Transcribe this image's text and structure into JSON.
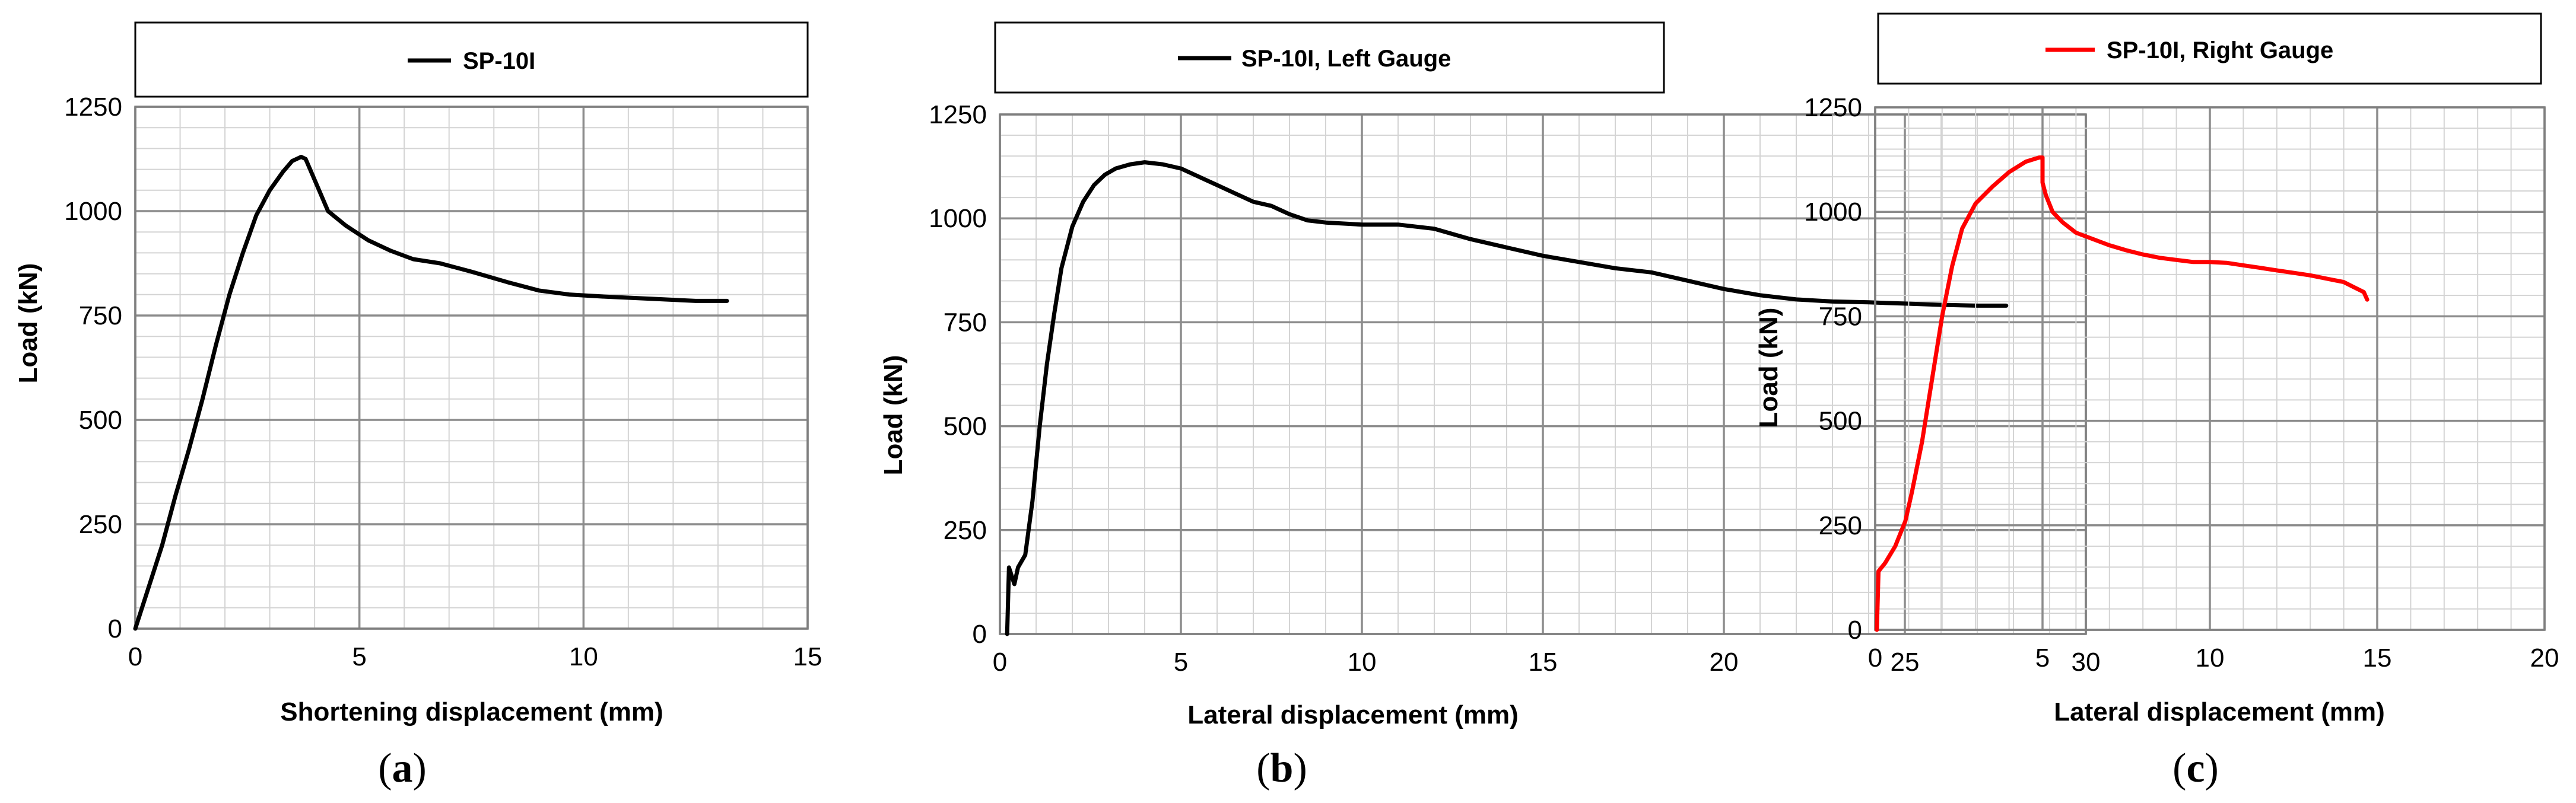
{
  "chart_data": [
    {
      "type": "line",
      "panel_label_open": "(",
      "panel_label_letter": "a",
      "panel_label_close": ")",
      "xlabel": "Shortening displacement (mm)",
      "ylabel": "Load (kN)",
      "xlim": [
        0,
        15
      ],
      "ylim": [
        0,
        1250
      ],
      "xticks": [
        0,
        5,
        10,
        15
      ],
      "yticks": [
        0,
        250,
        500,
        750,
        1000,
        1250
      ],
      "x_minor": 5,
      "y_minor": 5,
      "grid": true,
      "legend": "top",
      "series": [
        {
          "name": "SP-10I",
          "color": "#000000",
          "points": [
            [
              0,
              0
            ],
            [
              0.3,
              100
            ],
            [
              0.6,
              200
            ],
            [
              0.9,
              320
            ],
            [
              1.2,
              430
            ],
            [
              1.5,
              550
            ],
            [
              1.8,
              680
            ],
            [
              2.1,
              800
            ],
            [
              2.4,
              900
            ],
            [
              2.7,
              990
            ],
            [
              3.0,
              1050
            ],
            [
              3.3,
              1095
            ],
            [
              3.5,
              1120
            ],
            [
              3.7,
              1130
            ],
            [
              3.8,
              1125
            ],
            [
              3.9,
              1100
            ],
            [
              4.1,
              1050
            ],
            [
              4.3,
              1000
            ],
            [
              4.7,
              965
            ],
            [
              5.2,
              930
            ],
            [
              5.7,
              905
            ],
            [
              6.2,
              885
            ],
            [
              6.8,
              875
            ],
            [
              7.5,
              855
            ],
            [
              8.3,
              830
            ],
            [
              9.0,
              810
            ],
            [
              9.7,
              800
            ],
            [
              10.5,
              795
            ],
            [
              11.5,
              790
            ],
            [
              12.5,
              785
            ],
            [
              13.2,
              785
            ]
          ]
        }
      ]
    },
    {
      "type": "line",
      "panel_label_open": "(",
      "panel_label_letter": "b",
      "panel_label_close": ")",
      "xlabel": "Lateral displacement (mm)",
      "ylabel": "Load (kN)",
      "xlim": [
        0,
        30
      ],
      "ylim": [
        0,
        1250
      ],
      "xticks": [
        0,
        5,
        10,
        15,
        20,
        25,
        30
      ],
      "yticks": [
        0,
        250,
        500,
        750,
        1000,
        1250
      ],
      "x_minor": 5,
      "y_minor": 5,
      "grid": true,
      "legend": "top",
      "series": [
        {
          "name": "SP-10I, Left Gauge",
          "color": "#000000",
          "points": [
            [
              0.2,
              0
            ],
            [
              0.25,
              160
            ],
            [
              0.4,
              120
            ],
            [
              0.5,
              160
            ],
            [
              0.7,
              190
            ],
            [
              0.9,
              320
            ],
            [
              1.1,
              500
            ],
            [
              1.3,
              650
            ],
            [
              1.5,
              770
            ],
            [
              1.7,
              880
            ],
            [
              2.0,
              980
            ],
            [
              2.3,
              1040
            ],
            [
              2.6,
              1080
            ],
            [
              2.9,
              1105
            ],
            [
              3.2,
              1120
            ],
            [
              3.6,
              1130
            ],
            [
              4.0,
              1135
            ],
            [
              4.5,
              1130
            ],
            [
              5.0,
              1120
            ],
            [
              5.5,
              1100
            ],
            [
              6.0,
              1080
            ],
            [
              6.5,
              1060
            ],
            [
              7.0,
              1040
            ],
            [
              7.5,
              1030
            ],
            [
              8.0,
              1010
            ],
            [
              8.5,
              995
            ],
            [
              9.0,
              990
            ],
            [
              10.0,
              985
            ],
            [
              11.0,
              985
            ],
            [
              12.0,
              975
            ],
            [
              13.0,
              950
            ],
            [
              14.0,
              930
            ],
            [
              15.0,
              910
            ],
            [
              16.0,
              895
            ],
            [
              17.0,
              880
            ],
            [
              18.0,
              870
            ],
            [
              19.0,
              850
            ],
            [
              20.0,
              830
            ],
            [
              21.0,
              815
            ],
            [
              22.0,
              805
            ],
            [
              23.0,
              800
            ],
            [
              24.0,
              798
            ],
            [
              25.0,
              795
            ],
            [
              26.0,
              792
            ],
            [
              27.0,
              790
            ],
            [
              27.8,
              790
            ]
          ]
        }
      ]
    },
    {
      "type": "line",
      "panel_label_open": "(",
      "panel_label_letter": "c",
      "panel_label_close": ")",
      "xlabel": "Lateral displacement (mm)",
      "ylabel": "Load (kN)",
      "xlim": [
        0,
        20
      ],
      "ylim": [
        0,
        1250
      ],
      "xticks": [
        0,
        5,
        10,
        15,
        20
      ],
      "yticks": [
        0,
        250,
        500,
        750,
        1000,
        1250
      ],
      "x_minor": 5,
      "y_minor": 5,
      "grid": true,
      "legend": "top",
      "series": [
        {
          "name": "SP-10I, Right Gauge",
          "color": "#ff0000",
          "points": [
            [
              0.05,
              0
            ],
            [
              0.1,
              140
            ],
            [
              0.3,
              160
            ],
            [
              0.6,
              200
            ],
            [
              0.9,
              260
            ],
            [
              1.1,
              330
            ],
            [
              1.4,
              450
            ],
            [
              1.7,
              600
            ],
            [
              2.0,
              750
            ],
            [
              2.3,
              870
            ],
            [
              2.6,
              960
            ],
            [
              3.0,
              1020
            ],
            [
              3.5,
              1060
            ],
            [
              4.0,
              1095
            ],
            [
              4.5,
              1120
            ],
            [
              4.9,
              1130
            ],
            [
              5.0,
              1130
            ],
            [
              5.0,
              1070
            ],
            [
              5.1,
              1040
            ],
            [
              5.3,
              1000
            ],
            [
              5.6,
              975
            ],
            [
              6.0,
              950
            ],
            [
              6.5,
              935
            ],
            [
              7.0,
              920
            ],
            [
              7.5,
              908
            ],
            [
              8.0,
              898
            ],
            [
              8.5,
              890
            ],
            [
              9.0,
              885
            ],
            [
              9.5,
              880
            ],
            [
              10.0,
              880
            ],
            [
              10.5,
              878
            ],
            [
              11.0,
              872
            ],
            [
              11.5,
              866
            ],
            [
              12.0,
              860
            ],
            [
              12.5,
              854
            ],
            [
              13.0,
              848
            ],
            [
              13.5,
              840
            ],
            [
              14.0,
              832
            ],
            [
              14.3,
              820
            ],
            [
              14.6,
              808
            ],
            [
              14.7,
              790
            ]
          ]
        }
      ]
    }
  ]
}
